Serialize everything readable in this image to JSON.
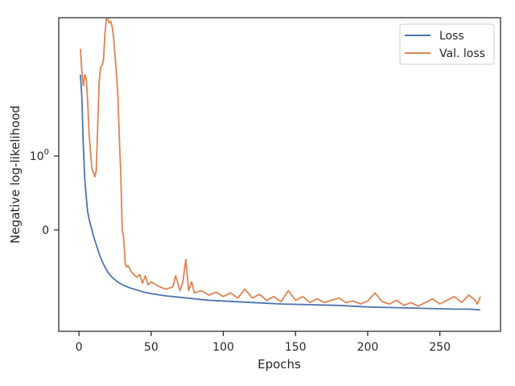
{
  "chart_data": {
    "type": "line",
    "xlabel": "Epochs",
    "ylabel": "Negative log-likelihood",
    "xlim": [
      -14,
      292
    ],
    "xticks": [
      0,
      50,
      100,
      150,
      200,
      250
    ],
    "yticks": [
      {
        "value": 1.0,
        "label": "10",
        "sup": "0"
      },
      {
        "value": 0.0,
        "label": "0",
        "sup": ""
      }
    ],
    "grid": false,
    "legend_position": "top-right",
    "series": [
      {
        "name": "Loss",
        "color": "#4c72b0",
        "points": [
          [
            1,
            2.1
          ],
          [
            2,
            1.8
          ],
          [
            3,
            1.15
          ],
          [
            4,
            0.7
          ],
          [
            5,
            0.45
          ],
          [
            6,
            0.25
          ],
          [
            7,
            0.15
          ],
          [
            8,
            0.07
          ],
          [
            9,
            0.0
          ],
          [
            10,
            -0.08
          ],
          [
            12,
            -0.2
          ],
          [
            14,
            -0.32
          ],
          [
            16,
            -0.42
          ],
          [
            18,
            -0.5
          ],
          [
            20,
            -0.57
          ],
          [
            23,
            -0.64
          ],
          [
            26,
            -0.69
          ],
          [
            30,
            -0.74
          ],
          [
            35,
            -0.78
          ],
          [
            40,
            -0.81
          ],
          [
            45,
            -0.84
          ],
          [
            50,
            -0.86
          ],
          [
            60,
            -0.89
          ],
          [
            70,
            -0.91
          ],
          [
            80,
            -0.93
          ],
          [
            90,
            -0.95
          ],
          [
            100,
            -0.96
          ],
          [
            120,
            -0.98
          ],
          [
            140,
            -1.0
          ],
          [
            160,
            -1.01
          ],
          [
            180,
            -1.02
          ],
          [
            200,
            -1.04
          ],
          [
            220,
            -1.05
          ],
          [
            240,
            -1.06
          ],
          [
            260,
            -1.07
          ],
          [
            270,
            -1.07
          ],
          [
            278,
            -1.08
          ]
        ]
      },
      {
        "name": "Val. loss",
        "color": "#dd8452",
        "points": [
          [
            1,
            2.45
          ],
          [
            2,
            2.15
          ],
          [
            3,
            1.95
          ],
          [
            4,
            2.1
          ],
          [
            5,
            2.05
          ],
          [
            6,
            1.75
          ],
          [
            7,
            1.3
          ],
          [
            8,
            1.05
          ],
          [
            9,
            0.82
          ],
          [
            10,
            0.78
          ],
          [
            11,
            0.72
          ],
          [
            12,
            0.8
          ],
          [
            13,
            1.4
          ],
          [
            14,
            2.0
          ],
          [
            15,
            2.2
          ],
          [
            16,
            2.22
          ],
          [
            17,
            2.3
          ],
          [
            18,
            2.65
          ],
          [
            19,
            2.85
          ],
          [
            20,
            2.85
          ],
          [
            21,
            2.8
          ],
          [
            22,
            2.82
          ],
          [
            23,
            2.75
          ],
          [
            24,
            2.6
          ],
          [
            25,
            2.35
          ],
          [
            26,
            2.1
          ],
          [
            27,
            1.8
          ],
          [
            28,
            1.2
          ],
          [
            29,
            0.75
          ],
          [
            30,
            0.0
          ],
          [
            31,
            -0.1
          ],
          [
            32,
            -0.45
          ],
          [
            33,
            -0.5
          ],
          [
            34,
            -0.48
          ],
          [
            36,
            -0.56
          ],
          [
            38,
            -0.6
          ],
          [
            40,
            -0.64
          ],
          [
            42,
            -0.6
          ],
          [
            44,
            -0.72
          ],
          [
            46,
            -0.62
          ],
          [
            48,
            -0.74
          ],
          [
            50,
            -0.7
          ],
          [
            55,
            -0.76
          ],
          [
            60,
            -0.8
          ],
          [
            65,
            -0.77
          ],
          [
            67,
            -0.62
          ],
          [
            70,
            -0.82
          ],
          [
            72,
            -0.7
          ],
          [
            74,
            -0.4
          ],
          [
            76,
            -0.82
          ],
          [
            78,
            -0.7
          ],
          [
            80,
            -0.85
          ],
          [
            85,
            -0.82
          ],
          [
            90,
            -0.88
          ],
          [
            95,
            -0.84
          ],
          [
            100,
            -0.9
          ],
          [
            105,
            -0.85
          ],
          [
            110,
            -0.92
          ],
          [
            115,
            -0.8
          ],
          [
            120,
            -0.92
          ],
          [
            125,
            -0.87
          ],
          [
            130,
            -0.95
          ],
          [
            135,
            -0.9
          ],
          [
            140,
            -0.97
          ],
          [
            145,
            -0.82
          ],
          [
            150,
            -0.95
          ],
          [
            155,
            -0.9
          ],
          [
            160,
            -0.98
          ],
          [
            165,
            -0.93
          ],
          [
            170,
            -0.98
          ],
          [
            175,
            -0.95
          ],
          [
            180,
            -0.92
          ],
          [
            185,
            -0.98
          ],
          [
            190,
            -0.96
          ],
          [
            195,
            -1.0
          ],
          [
            200,
            -0.96
          ],
          [
            205,
            -0.85
          ],
          [
            210,
            -0.97
          ],
          [
            215,
            -1.0
          ],
          [
            220,
            -0.95
          ],
          [
            225,
            -1.02
          ],
          [
            230,
            -0.98
          ],
          [
            235,
            -1.03
          ],
          [
            240,
            -0.98
          ],
          [
            245,
            -0.93
          ],
          [
            250,
            -1.0
          ],
          [
            255,
            -0.95
          ],
          [
            260,
            -0.9
          ],
          [
            265,
            -0.98
          ],
          [
            270,
            -0.88
          ],
          [
            274,
            -0.94
          ],
          [
            276,
            -1.0
          ],
          [
            278,
            -0.9
          ]
        ]
      }
    ]
  }
}
